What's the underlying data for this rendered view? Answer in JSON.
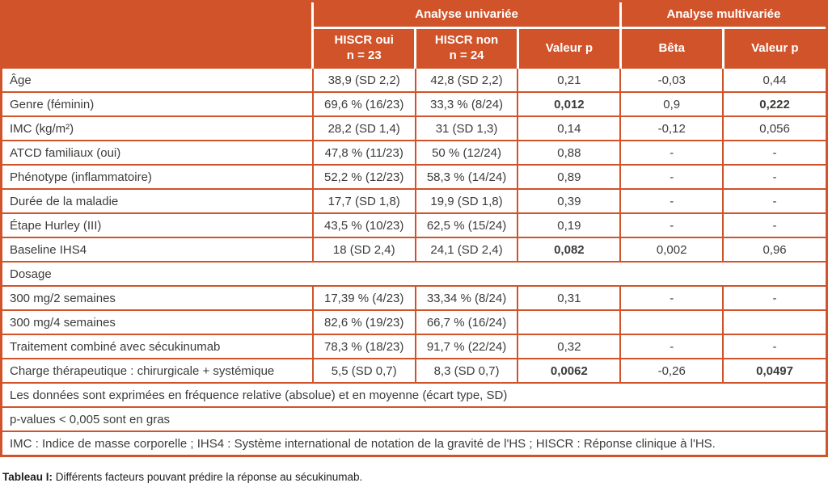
{
  "colors": {
    "accent_orange": "#d1532a",
    "header_text": "#ffffff",
    "body_text": "#3c3c3a"
  },
  "header": {
    "group_univariate": "Analyse univariée",
    "group_multivariate": "Analyse multivariée",
    "col_hiscr_yes": {
      "line1": "HISCR oui",
      "line2": "n = 23"
    },
    "col_hiscr_no": {
      "line1": "HISCR non",
      "line2": "n = 24"
    },
    "col_pvalue_uni": "Valeur p",
    "col_beta": "Bêta",
    "col_pvalue_multi": "Valeur p"
  },
  "rows": [
    {
      "label": "Âge",
      "cells": [
        "38,9 (SD 2,2)",
        "42,8 (SD 2,2)",
        "0,21",
        "-0,03",
        "0,44"
      ]
    },
    {
      "label": "Genre (féminin)",
      "cells": [
        "69,6 % (16/23)",
        "33,3 % (8/24)",
        "0,012",
        "0,9",
        "0,222"
      ]
    },
    {
      "label": "IMC (kg/m²)",
      "cells": [
        "28,2 (SD 1,4)",
        "31 (SD 1,3)",
        "0,14",
        "-0,12",
        "0,056"
      ]
    },
    {
      "label": "ATCD familiaux (oui)",
      "cells": [
        "47,8 % (11/23)",
        "50 % (12/24)",
        "0,88",
        "-",
        "-"
      ]
    },
    {
      "label": "Phénotype (inflammatoire)",
      "cells": [
        "52,2 % (12/23)",
        "58,3 % (14/24)",
        "0,89",
        "-",
        "-"
      ]
    },
    {
      "label": "Durée de la maladie",
      "cells": [
        "17,7 (SD 1,8)",
        "19,9 (SD 1,8)",
        "0,39",
        "-",
        "-"
      ]
    },
    {
      "label": "Étape Hurley (III)",
      "cells": [
        "43,5 % (10/23)",
        "62,5 % (15/24)",
        "0,19",
        "-",
        "-"
      ]
    },
    {
      "label": "Baseline IHS4",
      "cells": [
        "18 (SD 2,4)",
        "24,1 (SD 2,4)",
        "0,082",
        "0,002",
        "0,96"
      ]
    },
    {
      "label": "Dosage",
      "type": "section"
    },
    {
      "label": "300 mg/2 semaines",
      "cells": [
        "17,39 % (4/23)",
        "33,34 % (8/24)",
        "0,31",
        "-",
        "-"
      ]
    },
    {
      "label": "300 mg/4 semaines",
      "cells": [
        "82,6 % (19/23)",
        "66,7 % (16/24)",
        "",
        "",
        ""
      ]
    },
    {
      "label": "Traitement combiné avec sécukinumab",
      "cells": [
        "78,3 % (18/23)",
        "91,7 % (22/24)",
        "0,32",
        "-",
        "-"
      ]
    },
    {
      "label": "Charge thérapeutique : chirurgicale + systémique",
      "cells": [
        "5,5 (SD 0,7)",
        "8,3 (SD 0,7)",
        "0,0062",
        "-0,26",
        "0,0497"
      ]
    },
    {
      "label": "Les données sont exprimées en fréquence relative (absolue) et en moyenne (écart type, SD)",
      "type": "footnote"
    },
    {
      "label": "p-values < 0,005 sont en gras",
      "type": "footnote"
    },
    {
      "label": "IMC : Indice de masse corporelle ; IHS4 : Système international de notation de la gravité de l'HS ; HISCR : Réponse clinique à l'HS.",
      "type": "footnote"
    }
  ],
  "caption": {
    "bold": "Tableau I:",
    "text": " Différents facteurs pouvant prédire la réponse au sécukinumab."
  }
}
